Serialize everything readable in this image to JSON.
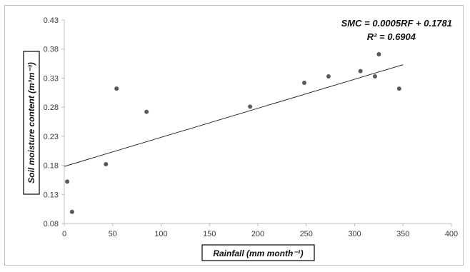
{
  "chart_data": {
    "type": "scatter",
    "title": "",
    "xlabel": "Rainfall (mm month⁻¹)",
    "ylabel": "Soil moisture content (m³m⁻³)",
    "xlim": [
      0,
      400
    ],
    "ylim": [
      0.08,
      0.43
    ],
    "x_ticks": [
      0,
      50,
      100,
      150,
      200,
      250,
      300,
      350,
      400
    ],
    "x_tick_labels": [
      "0",
      "50",
      "100",
      "150",
      "200",
      "250",
      "300",
      "350",
      "400"
    ],
    "y_ticks": [
      0.08,
      0.13,
      0.18,
      0.23,
      0.28,
      0.33,
      0.38,
      0.43
    ],
    "y_tick_labels": [
      "0.08",
      "0.13",
      "0.18",
      "0.23",
      "0.28",
      "0.33",
      "0.38",
      "0.43"
    ],
    "grid": false,
    "legend": false,
    "points": [
      {
        "x": 3,
        "y": 0.152
      },
      {
        "x": 8,
        "y": 0.1
      },
      {
        "x": 43,
        "y": 0.182
      },
      {
        "x": 54,
        "y": 0.312
      },
      {
        "x": 85,
        "y": 0.272
      },
      {
        "x": 192,
        "y": 0.281
      },
      {
        "x": 248,
        "y": 0.322
      },
      {
        "x": 273,
        "y": 0.333
      },
      {
        "x": 306,
        "y": 0.342
      },
      {
        "x": 321,
        "y": 0.333
      },
      {
        "x": 325,
        "y": 0.371
      },
      {
        "x": 346,
        "y": 0.312
      }
    ],
    "trendline": {
      "slope": 0.0005,
      "intercept": 0.1781,
      "x_range": [
        0,
        350
      ],
      "equation": "SMC = 0.0005RF + 0.1781",
      "r_squared": "R² = 0.6904"
    },
    "colors": {
      "point": "#595959",
      "trendline": "#2b2b2b",
      "axis": "#bfbfbf",
      "frame": "#bfbfbf"
    }
  }
}
